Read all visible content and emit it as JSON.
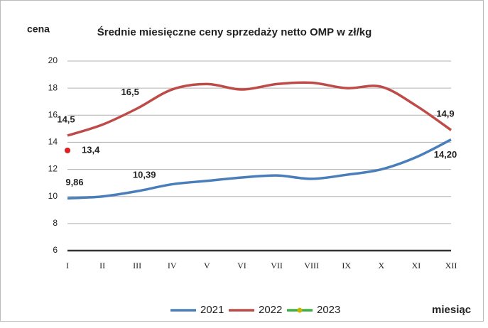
{
  "chart_data": {
    "type": "line",
    "title": "Średnie miesięczne ceny sprzedaży netto OMP w zł/kg",
    "y_label": "cena",
    "x_label": "miesiąc",
    "categories": [
      "I",
      "II",
      "III",
      "IV",
      "V",
      "VI",
      "VII",
      "VIII",
      "IX",
      "X",
      "XI",
      "XII"
    ],
    "series": [
      {
        "name": "2021",
        "color": "#4a7ebb",
        "values": [
          9.86,
          10.0,
          10.39,
          10.9,
          11.15,
          11.4,
          11.55,
          11.3,
          11.6,
          12.0,
          12.9,
          14.2
        ],
        "value_labels": [
          "9,86",
          null,
          "10,39",
          null,
          null,
          null,
          null,
          null,
          null,
          null,
          null,
          "14,20"
        ]
      },
      {
        "name": "2022",
        "color": "#be4b48",
        "values": [
          14.5,
          15.3,
          16.5,
          17.9,
          18.3,
          17.9,
          18.3,
          18.4,
          18.0,
          18.1,
          16.7,
          14.9
        ],
        "value_labels": [
          "14,5",
          null,
          "16,5",
          null,
          null,
          null,
          null,
          null,
          null,
          null,
          null,
          "14,9"
        ]
      },
      {
        "name": "2023",
        "color": "#3cb043",
        "marker_color": "#e02020",
        "values": [
          13.4,
          null,
          null,
          null,
          null,
          null,
          null,
          null,
          null,
          null,
          null,
          null
        ],
        "value_labels": [
          "13,4",
          null,
          null,
          null,
          null,
          null,
          null,
          null,
          null,
          null,
          null,
          null
        ]
      }
    ],
    "ylim": [
      6,
      20
    ],
    "yticks": [
      6,
      8,
      10,
      12,
      14,
      16,
      18,
      20
    ],
    "grid": true,
    "legend": "bottom"
  }
}
